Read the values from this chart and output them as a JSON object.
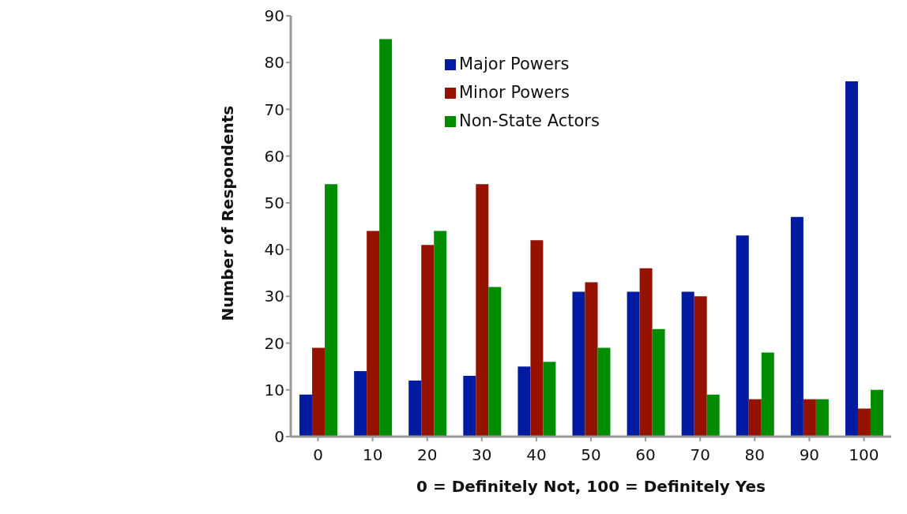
{
  "chart_data": {
    "type": "bar",
    "xlabel": "0 = Definitely Not, 100 = Definitely Yes",
    "ylabel": "Number of Respondents",
    "categories": [
      "0",
      "10",
      "20",
      "30",
      "40",
      "50",
      "60",
      "70",
      "80",
      "90",
      "100"
    ],
    "series": [
      {
        "name": "Major Powers",
        "color": "#001aa0",
        "values": [
          9,
          14,
          12,
          13,
          15,
          31,
          31,
          31,
          43,
          47,
          76
        ]
      },
      {
        "name": "Minor Powers",
        "color": "#961200",
        "values": [
          19,
          44,
          41,
          54,
          42,
          33,
          36,
          30,
          8,
          8,
          6
        ]
      },
      {
        "name": "Non-State Actors",
        "color": "#008c00",
        "values": [
          54,
          85,
          44,
          32,
          16,
          19,
          23,
          9,
          18,
          8,
          10
        ]
      }
    ],
    "ylim": [
      0,
      90
    ],
    "yticks": [
      0,
      10,
      20,
      30,
      40,
      50,
      60,
      70,
      80,
      90
    ],
    "grid": false,
    "legend": "top"
  }
}
